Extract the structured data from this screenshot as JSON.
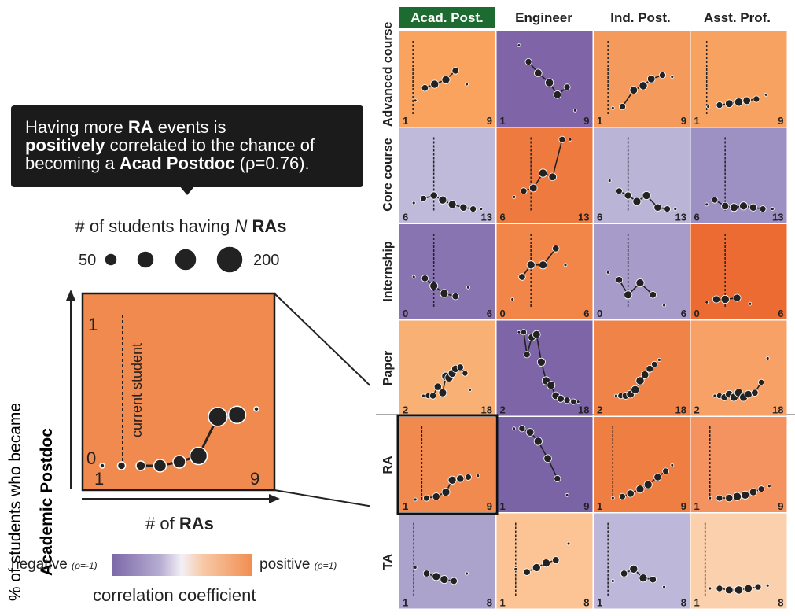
{
  "tooltip": {
    "line1_pre": "Having more ",
    "line1_bold": "RA",
    "line1_post": " events is",
    "line2_bold": "positively",
    "line2_post": " correlated to the chance of",
    "line3_pre": "becoming a ",
    "line3_bold": "Acad Postdoc",
    "line3_post": " (ρ=0.76)."
  },
  "size_legend": {
    "title_pre": "# of students having ",
    "title_italic": "N",
    "title_bold": " RAs",
    "min_label": "50",
    "max_label": "200"
  },
  "detail": {
    "ylabel_line1": "% of students who became",
    "ylabel_line2": "Academic Postdoc",
    "xlabel_pre": "# of ",
    "xlabel_bold": "RAs",
    "y_top": "1",
    "y_bottom": "0",
    "x_min": "1",
    "x_max": "9",
    "current_label": "current student",
    "color": "#f08a4f"
  },
  "correlation_legend": {
    "negative": "negative",
    "negative_sub": "(ρ=-1)",
    "positive": "positive",
    "positive_sub": "(ρ=1)",
    "title": "correlation coefficient"
  },
  "chart_data": {
    "type": "scatter",
    "columns": [
      "Acad. Post.",
      "Engineer",
      "Ind. Post.",
      "Asst. Prof."
    ],
    "selected_column": "Acad. Post.",
    "rows": [
      {
        "name": "Advanced course",
        "xmin": "1",
        "xmax": "9",
        "colors": [
          "#f9a35e",
          "#7f65a7",
          "#f49a5c",
          "#f7a260"
        ]
      },
      {
        "name": "Core course",
        "xmin": "6",
        "xmax": "13",
        "colors": [
          "#c0bada",
          "#ee7a40",
          "#bab5d6",
          "#9d90c2"
        ]
      },
      {
        "name": "Internship",
        "xmin": "0",
        "xmax": "6",
        "colors": [
          "#8774b0",
          "#f28649",
          "#a79bca",
          "#ec6b32"
        ]
      },
      {
        "name": "Paper",
        "xmin": "2",
        "xmax": "18",
        "colors": [
          "#f9b075",
          "#7d65a7",
          "#ef8348",
          "#f7a167"
        ]
      },
      {
        "name": "RA",
        "xmin": "1",
        "xmax": "9",
        "colors": [
          "#f08a4f",
          "#7b64a6",
          "#ef7e43",
          "#f59360"
        ]
      },
      {
        "name": "TA",
        "xmin": "1",
        "xmax": "8",
        "colors": [
          "#aca3cd",
          "#fcc395",
          "#bdb8d9",
          "#fbd0ad"
        ]
      }
    ],
    "detail_series": {
      "name": "RA → Acad. Post.",
      "x": [
        1,
        2,
        3,
        4,
        5,
        6,
        7,
        8,
        9
      ],
      "y": [
        0.0,
        0.0,
        0.0,
        0.0,
        0.02,
        0.05,
        0.25,
        0.26,
        0.29
      ],
      "current_x": 2
    },
    "cells": [
      [
        {
          "pts": [
            [
              0.1,
              0.18
            ],
            [
              0.22,
              0.35
            ],
            [
              0.34,
              0.4
            ],
            [
              0.48,
              0.46
            ],
            [
              0.6,
              0.58
            ],
            [
              0.74,
              0.4
            ]
          ],
          "cur": 0.07
        },
        {
          "pts": [
            [
              0.18,
              0.92
            ],
            [
              0.3,
              0.7
            ],
            [
              0.42,
              0.55
            ],
            [
              0.56,
              0.42
            ],
            [
              0.66,
              0.26
            ],
            [
              0.78,
              0.36
            ],
            [
              0.88,
              0.05
            ]
          ],
          "cur": null
        },
        {
          "pts": [
            [
              0.14,
              0.08
            ],
            [
              0.26,
              0.1
            ],
            [
              0.4,
              0.32
            ],
            [
              0.52,
              0.38
            ],
            [
              0.62,
              0.47
            ],
            [
              0.76,
              0.52
            ],
            [
              0.88,
              0.5
            ]
          ],
          "cur": 0.08
        },
        {
          "pts": [
            [
              0.12,
              0.1
            ],
            [
              0.26,
              0.12
            ],
            [
              0.38,
              0.14
            ],
            [
              0.5,
              0.16
            ],
            [
              0.6,
              0.18
            ],
            [
              0.72,
              0.2
            ],
            [
              0.84,
              0.26
            ]
          ],
          "cur": 0.1
        }
      ],
      [
        {
          "pts": [
            [
              0.08,
              0.1
            ],
            [
              0.2,
              0.16
            ],
            [
              0.33,
              0.2
            ],
            [
              0.44,
              0.14
            ],
            [
              0.56,
              0.08
            ],
            [
              0.7,
              0.04
            ],
            [
              0.82,
              0.02
            ],
            [
              0.92,
              0.02
            ]
          ],
          "cur": 0.33
        },
        {
          "pts": [
            [
              0.12,
              0.18
            ],
            [
              0.24,
              0.26
            ],
            [
              0.36,
              0.3
            ],
            [
              0.48,
              0.5
            ],
            [
              0.6,
              0.45
            ],
            [
              0.72,
              0.95
            ],
            [
              0.82,
              0.95
            ]
          ],
          "cur": 0.33
        },
        {
          "pts": [
            [
              0.1,
              0.4
            ],
            [
              0.22,
              0.26
            ],
            [
              0.33,
              0.2
            ],
            [
              0.44,
              0.12
            ],
            [
              0.56,
              0.2
            ],
            [
              0.7,
              0.04
            ],
            [
              0.82,
              0.02
            ],
            [
              0.92,
              0.02
            ]
          ],
          "cur": 0.33
        },
        {
          "pts": [
            [
              0.1,
              0.08
            ],
            [
              0.2,
              0.14
            ],
            [
              0.33,
              0.06
            ],
            [
              0.44,
              0.04
            ],
            [
              0.56,
              0.06
            ],
            [
              0.68,
              0.04
            ],
            [
              0.8,
              0.02
            ],
            [
              0.92,
              0.02
            ]
          ],
          "cur": 0.33
        }
      ],
      [
        {
          "pts": [
            [
              0.08,
              0.4
            ],
            [
              0.22,
              0.38
            ],
            [
              0.33,
              0.28
            ],
            [
              0.46,
              0.18
            ],
            [
              0.6,
              0.14
            ],
            [
              0.76,
              0.26
            ]
          ],
          "cur": 0.33
        },
        {
          "pts": [
            [
              0.1,
              0.1
            ],
            [
              0.22,
              0.4
            ],
            [
              0.33,
              0.56
            ],
            [
              0.48,
              0.56
            ],
            [
              0.64,
              0.78
            ],
            [
              0.76,
              0.56
            ]
          ],
          "cur": 0.33
        },
        {
          "pts": [
            [
              0.08,
              0.46
            ],
            [
              0.22,
              0.36
            ],
            [
              0.33,
              0.16
            ],
            [
              0.48,
              0.32
            ],
            [
              0.64,
              0.16
            ],
            [
              0.78,
              0.02
            ]
          ],
          "cur": 0.33
        },
        {
          "pts": [
            [
              0.1,
              0.06
            ],
            [
              0.22,
              0.1
            ],
            [
              0.33,
              0.1
            ],
            [
              0.48,
              0.12
            ],
            [
              0.64,
              0.04
            ]
          ],
          "cur": 0.33
        }
      ],
      [
        {
          "pts": [
            [
              0.2,
              0.1
            ],
            [
              0.26,
              0.1
            ],
            [
              0.32,
              0.1
            ],
            [
              0.38,
              0.22
            ],
            [
              0.44,
              0.14
            ],
            [
              0.48,
              0.36
            ],
            [
              0.52,
              0.34
            ],
            [
              0.56,
              0.4
            ],
            [
              0.6,
              0.46
            ],
            [
              0.66,
              0.48
            ],
            [
              0.72,
              0.4
            ],
            [
              0.78,
              0.18
            ]
          ],
          "cur": null
        },
        {
          "pts": [
            [
              0.18,
              0.95
            ],
            [
              0.24,
              0.95
            ],
            [
              0.28,
              0.65
            ],
            [
              0.34,
              0.88
            ],
            [
              0.4,
              0.92
            ],
            [
              0.46,
              0.55
            ],
            [
              0.52,
              0.3
            ],
            [
              0.58,
              0.24
            ],
            [
              0.64,
              0.1
            ],
            [
              0.7,
              0.06
            ],
            [
              0.78,
              0.04
            ],
            [
              0.86,
              0.02
            ],
            [
              0.92,
              0.02
            ]
          ],
          "cur": null
        },
        {
          "pts": [
            [
              0.18,
              0.1
            ],
            [
              0.24,
              0.1
            ],
            [
              0.3,
              0.1
            ],
            [
              0.36,
              0.12
            ],
            [
              0.42,
              0.18
            ],
            [
              0.48,
              0.3
            ],
            [
              0.54,
              0.38
            ],
            [
              0.6,
              0.46
            ],
            [
              0.66,
              0.52
            ],
            [
              0.72,
              0.58
            ]
          ],
          "cur": null
        },
        {
          "pts": [
            [
              0.2,
              0.1
            ],
            [
              0.26,
              0.1
            ],
            [
              0.32,
              0.08
            ],
            [
              0.38,
              0.12
            ],
            [
              0.44,
              0.08
            ],
            [
              0.5,
              0.14
            ],
            [
              0.56,
              0.08
            ],
            [
              0.62,
              0.12
            ],
            [
              0.7,
              0.14
            ],
            [
              0.78,
              0.28
            ],
            [
              0.86,
              0.6
            ]
          ],
          "cur": null
        }
      ],
      [
        {
          "pts": [
            [
              0.1,
              0.0
            ],
            [
              0.24,
              0.02
            ],
            [
              0.36,
              0.04
            ],
            [
              0.48,
              0.1
            ],
            [
              0.56,
              0.26
            ],
            [
              0.66,
              0.28
            ],
            [
              0.76,
              0.3
            ],
            [
              0.88,
              0.32
            ]
          ],
          "cur": 0.18
        },
        {
          "pts": [
            [
              0.12,
              0.95
            ],
            [
              0.22,
              0.95
            ],
            [
              0.32,
              0.9
            ],
            [
              0.42,
              0.78
            ],
            [
              0.54,
              0.55
            ],
            [
              0.66,
              0.28
            ],
            [
              0.78,
              0.06
            ]
          ],
          "cur": null
        },
        {
          "pts": [
            [
              0.14,
              0.02
            ],
            [
              0.26,
              0.04
            ],
            [
              0.36,
              0.08
            ],
            [
              0.48,
              0.14
            ],
            [
              0.58,
              0.2
            ],
            [
              0.7,
              0.3
            ],
            [
              0.8,
              0.38
            ],
            [
              0.88,
              0.46
            ]
          ],
          "cur": 0.14
        },
        {
          "pts": [
            [
              0.14,
              0.02
            ],
            [
              0.26,
              0.02
            ],
            [
              0.38,
              0.02
            ],
            [
              0.48,
              0.04
            ],
            [
              0.58,
              0.06
            ],
            [
              0.68,
              0.1
            ],
            [
              0.78,
              0.14
            ],
            [
              0.88,
              0.18
            ]
          ],
          "cur": 0.14
        }
      ],
      [
        {
          "pts": [
            [
              0.1,
              0.38
            ],
            [
              0.24,
              0.3
            ],
            [
              0.36,
              0.26
            ],
            [
              0.46,
              0.22
            ],
            [
              0.58,
              0.2
            ],
            [
              0.74,
              0.3
            ]
          ],
          "cur": 0.08
        },
        {
          "pts": [
            [
              0.14,
              0.36
            ],
            [
              0.28,
              0.32
            ],
            [
              0.4,
              0.38
            ],
            [
              0.52,
              0.44
            ],
            [
              0.64,
              0.48
            ],
            [
              0.8,
              0.7
            ]
          ],
          "cur": 0.14
        },
        {
          "pts": [
            [
              0.14,
              0.2
            ],
            [
              0.28,
              0.3
            ],
            [
              0.4,
              0.36
            ],
            [
              0.52,
              0.24
            ],
            [
              0.64,
              0.22
            ],
            [
              0.78,
              0.12
            ]
          ],
          "cur": 0.08
        },
        {
          "pts": [
            [
              0.14,
              0.1
            ],
            [
              0.26,
              0.1
            ],
            [
              0.38,
              0.08
            ],
            [
              0.5,
              0.08
            ],
            [
              0.62,
              0.1
            ],
            [
              0.74,
              0.12
            ],
            [
              0.86,
              0.14
            ]
          ],
          "cur": 0.08
        }
      ]
    ]
  }
}
